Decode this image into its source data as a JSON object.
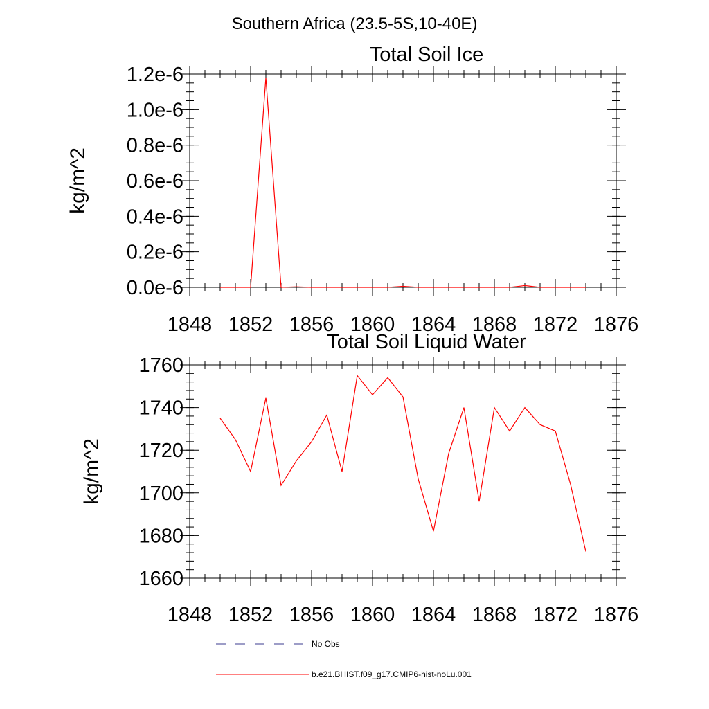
{
  "figure_title": "Southern Africa (23.5-5S,10-40E)",
  "colors": {
    "model": "#ff0000",
    "obs": "#3b3b8f",
    "axis": "#000000"
  },
  "legend": {
    "obs_label": "No Obs",
    "model_label": "b.e21.BHIST.f09_g17.CMIP6-hist-noLu.001"
  },
  "chart_data": [
    {
      "type": "line",
      "title": "Total Soil Ice",
      "xlabel": "",
      "ylabel": "kg/m^2",
      "xlim": [
        1848,
        1876
      ],
      "ylim": [
        0,
        1.2e-06
      ],
      "xticks": [
        1848,
        1852,
        1856,
        1860,
        1864,
        1868,
        1872,
        1876
      ],
      "xtick_labels": [
        "1848",
        "1852",
        "1856",
        "1860",
        "1864",
        "1868",
        "1872",
        "1876"
      ],
      "yticks": [
        0,
        2e-07,
        4e-07,
        6e-07,
        8e-07,
        1e-06,
        1.2e-06
      ],
      "ytick_labels": [
        "0.0e-6",
        "0.2e-6",
        "0.4e-6",
        "0.6e-6",
        "0.8e-6",
        "1.0e-6",
        "1.2e-6"
      ],
      "x_minor_step": 1,
      "y_minor_step": 5e-08,
      "grid": false,
      "series": [
        {
          "x": [
            1850,
            1851,
            1852,
            1853,
            1854,
            1855,
            1856,
            1857,
            1858,
            1859,
            1860,
            1861,
            1862,
            1863,
            1864,
            1865,
            1866,
            1867,
            1868,
            1869,
            1870,
            1871,
            1872,
            1873,
            1874
          ],
          "values": [
            0,
            0,
            0,
            1.18e-06,
            0,
            3e-09,
            0,
            0,
            0,
            0,
            0,
            0,
            6e-09,
            0,
            0,
            0,
            0,
            0,
            0,
            0,
            1e-08,
            0,
            0,
            0,
            0
          ]
        }
      ]
    },
    {
      "type": "line",
      "title": "Total Soil Liquid Water",
      "xlabel": "",
      "ylabel": "kg/m^2",
      "xlim": [
        1848,
        1876
      ],
      "ylim": [
        1660,
        1760
      ],
      "xticks": [
        1848,
        1852,
        1856,
        1860,
        1864,
        1868,
        1872,
        1876
      ],
      "xtick_labels": [
        "1848",
        "1852",
        "1856",
        "1860",
        "1864",
        "1868",
        "1872",
        "1876"
      ],
      "yticks": [
        1660,
        1680,
        1700,
        1720,
        1740,
        1760
      ],
      "ytick_labels": [
        "1660",
        "1680",
        "1700",
        "1720",
        "1740",
        "1760"
      ],
      "x_minor_step": 1,
      "y_minor_step": 4,
      "grid": false,
      "series": [
        {
          "x": [
            1850,
            1851,
            1852,
            1853,
            1854,
            1855,
            1856,
            1857,
            1858,
            1859,
            1860,
            1861,
            1862,
            1863,
            1864,
            1865,
            1866,
            1867,
            1868,
            1869,
            1870,
            1871,
            1872,
            1873,
            1874
          ],
          "values": [
            1735,
            1725,
            1710,
            1744.5,
            1703.5,
            1715,
            1724,
            1736.5,
            1710,
            1755,
            1746,
            1754,
            1745,
            1706.5,
            1682,
            1718.5,
            1740,
            1696,
            1740,
            1729,
            1740,
            1732,
            1729,
            1704,
            1672.5
          ]
        }
      ]
    }
  ]
}
